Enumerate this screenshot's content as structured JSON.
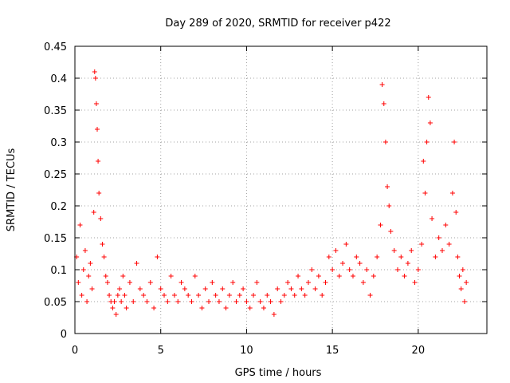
{
  "chart_data": {
    "type": "scatter",
    "title": "Day 289 of 2020, SRMTID for receiver p422",
    "xlabel": "GPS time / hours",
    "ylabel": "SRMTID / TECUs",
    "xlim": [
      0,
      24
    ],
    "ylim": [
      0,
      0.45
    ],
    "xticks": [
      0,
      5,
      10,
      15,
      20
    ],
    "xtick_labels": [
      "0",
      "5",
      "10",
      "15",
      "20"
    ],
    "yticks": [
      0,
      0.05,
      0.1,
      0.15,
      0.2,
      0.25,
      0.3,
      0.35,
      0.4,
      0.45
    ],
    "ytick_labels": [
      "0",
      "0.05",
      "0.1",
      "0.15",
      "0.2",
      "0.25",
      "0.3",
      "0.35",
      "0.4",
      "0.45"
    ],
    "grid": true,
    "marker": "+",
    "color": "#ff0000",
    "series": [
      {
        "name": "SRMTID",
        "points": [
          [
            0.1,
            0.12
          ],
          [
            0.2,
            0.08
          ],
          [
            0.3,
            0.17
          ],
          [
            0.4,
            0.06
          ],
          [
            0.5,
            0.1
          ],
          [
            0.6,
            0.13
          ],
          [
            0.7,
            0.05
          ],
          [
            0.8,
            0.09
          ],
          [
            0.9,
            0.11
          ],
          [
            1.0,
            0.07
          ],
          [
            1.1,
            0.19
          ],
          [
            1.15,
            0.41
          ],
          [
            1.2,
            0.4
          ],
          [
            1.25,
            0.36
          ],
          [
            1.3,
            0.32
          ],
          [
            1.35,
            0.27
          ],
          [
            1.4,
            0.22
          ],
          [
            1.5,
            0.18
          ],
          [
            1.6,
            0.14
          ],
          [
            1.7,
            0.12
          ],
          [
            1.8,
            0.09
          ],
          [
            1.9,
            0.08
          ],
          [
            2.0,
            0.06
          ],
          [
            2.1,
            0.05
          ],
          [
            2.2,
            0.04
          ],
          [
            2.3,
            0.05
          ],
          [
            2.4,
            0.03
          ],
          [
            2.5,
            0.06
          ],
          [
            2.6,
            0.07
          ],
          [
            2.7,
            0.05
          ],
          [
            2.8,
            0.09
          ],
          [
            2.9,
            0.06
          ],
          [
            3.0,
            0.04
          ],
          [
            3.2,
            0.08
          ],
          [
            3.4,
            0.05
          ],
          [
            3.6,
            0.11
          ],
          [
            3.8,
            0.07
          ],
          [
            4.0,
            0.06
          ],
          [
            4.2,
            0.05
          ],
          [
            4.4,
            0.08
          ],
          [
            4.6,
            0.04
          ],
          [
            4.8,
            0.12
          ],
          [
            5.0,
            0.07
          ],
          [
            5.2,
            0.06
          ],
          [
            5.4,
            0.05
          ],
          [
            5.6,
            0.09
          ],
          [
            5.8,
            0.06
          ],
          [
            6.0,
            0.05
          ],
          [
            6.2,
            0.08
          ],
          [
            6.4,
            0.07
          ],
          [
            6.6,
            0.06
          ],
          [
            6.8,
            0.05
          ],
          [
            7.0,
            0.09
          ],
          [
            7.2,
            0.06
          ],
          [
            7.4,
            0.04
          ],
          [
            7.6,
            0.07
          ],
          [
            7.8,
            0.05
          ],
          [
            8.0,
            0.08
          ],
          [
            8.2,
            0.06
          ],
          [
            8.4,
            0.05
          ],
          [
            8.6,
            0.07
          ],
          [
            8.8,
            0.04
          ],
          [
            9.0,
            0.06
          ],
          [
            9.2,
            0.08
          ],
          [
            9.4,
            0.05
          ],
          [
            9.6,
            0.06
          ],
          [
            9.8,
            0.07
          ],
          [
            10.0,
            0.05
          ],
          [
            10.2,
            0.04
          ],
          [
            10.4,
            0.06
          ],
          [
            10.6,
            0.08
          ],
          [
            10.8,
            0.05
          ],
          [
            11.0,
            0.04
          ],
          [
            11.2,
            0.06
          ],
          [
            11.4,
            0.05
          ],
          [
            11.6,
            0.03
          ],
          [
            11.8,
            0.07
          ],
          [
            12.0,
            0.05
          ],
          [
            12.2,
            0.06
          ],
          [
            12.4,
            0.08
          ],
          [
            12.6,
            0.07
          ],
          [
            12.8,
            0.06
          ],
          [
            13.0,
            0.09
          ],
          [
            13.2,
            0.07
          ],
          [
            13.4,
            0.06
          ],
          [
            13.6,
            0.08
          ],
          [
            13.8,
            0.1
          ],
          [
            14.0,
            0.07
          ],
          [
            14.2,
            0.09
          ],
          [
            14.4,
            0.06
          ],
          [
            14.6,
            0.08
          ],
          [
            14.8,
            0.12
          ],
          [
            15.0,
            0.1
          ],
          [
            15.2,
            0.13
          ],
          [
            15.4,
            0.09
          ],
          [
            15.6,
            0.11
          ],
          [
            15.8,
            0.14
          ],
          [
            16.0,
            0.1
          ],
          [
            16.2,
            0.09
          ],
          [
            16.4,
            0.12
          ],
          [
            16.6,
            0.11
          ],
          [
            16.8,
            0.08
          ],
          [
            17.0,
            0.1
          ],
          [
            17.2,
            0.06
          ],
          [
            17.4,
            0.09
          ],
          [
            17.6,
            0.12
          ],
          [
            17.8,
            0.17
          ],
          [
            17.9,
            0.39
          ],
          [
            18.0,
            0.36
          ],
          [
            18.1,
            0.3
          ],
          [
            18.2,
            0.23
          ],
          [
            18.3,
            0.2
          ],
          [
            18.4,
            0.16
          ],
          [
            18.6,
            0.13
          ],
          [
            18.8,
            0.1
          ],
          [
            19.0,
            0.12
          ],
          [
            19.2,
            0.09
          ],
          [
            19.4,
            0.11
          ],
          [
            19.6,
            0.13
          ],
          [
            19.8,
            0.08
          ],
          [
            20.0,
            0.1
          ],
          [
            20.2,
            0.14
          ],
          [
            20.3,
            0.27
          ],
          [
            20.4,
            0.22
          ],
          [
            20.5,
            0.3
          ],
          [
            20.6,
            0.37
          ],
          [
            20.7,
            0.33
          ],
          [
            20.8,
            0.18
          ],
          [
            21.0,
            0.12
          ],
          [
            21.2,
            0.15
          ],
          [
            21.4,
            0.13
          ],
          [
            21.6,
            0.17
          ],
          [
            21.8,
            0.14
          ],
          [
            22.0,
            0.22
          ],
          [
            22.1,
            0.3
          ],
          [
            22.2,
            0.19
          ],
          [
            22.3,
            0.12
          ],
          [
            22.4,
            0.09
          ],
          [
            22.5,
            0.07
          ],
          [
            22.6,
            0.1
          ],
          [
            22.7,
            0.05
          ],
          [
            22.8,
            0.08
          ]
        ]
      }
    ]
  }
}
